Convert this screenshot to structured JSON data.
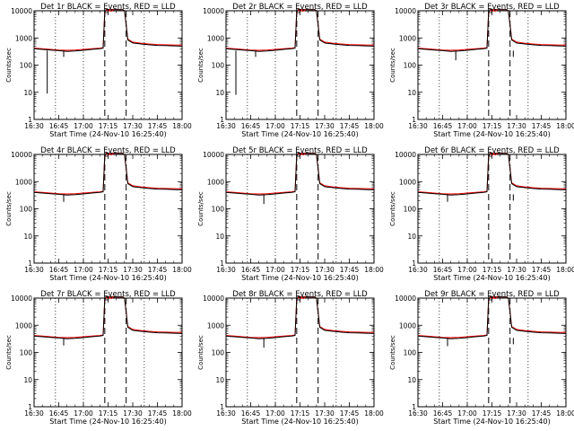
{
  "chart_data": {
    "type": "line",
    "layout": "grid",
    "grid_columns": 3,
    "y_scale": "log",
    "ylim": [
      1,
      10000
    ],
    "yticks": [
      1,
      10,
      100,
      1000,
      10000
    ],
    "xlim": [
      "16:30",
      "18:00"
    ],
    "xticks": [
      "16:30",
      "16:45",
      "17:00",
      "17:15",
      "17:30",
      "17:45",
      "18:00"
    ],
    "xlabel": "Start Time (24-Nov-10 16:25:40)",
    "ylabel": "Counts/sec",
    "colors": {
      "events": "#000000",
      "lld": "#ff0000"
    },
    "vlines": {
      "dashed": [
        "17:13",
        "17:26"
      ],
      "dotted": [
        "16:43",
        "17:00",
        "17:37"
      ]
    },
    "panels": [
      {
        "title": "Det 1r BLACK = Events, RED = LLD",
        "spikes": [
          {
            "x": "16:38",
            "y": 9
          },
          {
            "x": "16:48",
            "y": 200
          }
        ]
      },
      {
        "title": "Det 2r BLACK = Events, RED = LLD",
        "spikes": [
          {
            "x": "16:36",
            "y": 8
          },
          {
            "x": "16:48",
            "y": 200
          }
        ]
      },
      {
        "title": "Det 3r BLACK = Events, RED = LLD",
        "spikes": [
          {
            "x": "16:53",
            "y": 150
          },
          {
            "x": "17:28",
            "y": 200
          }
        ]
      },
      {
        "title": "Det 4r BLACK = Events, RED = LLD",
        "spikes": [
          {
            "x": "16:48",
            "y": 180
          }
        ]
      },
      {
        "title": "Det 5r BLACK = Events, RED = LLD",
        "spikes": [
          {
            "x": "16:53",
            "y": 150
          }
        ]
      },
      {
        "title": "Det 6r BLACK = Events, RED = LLD",
        "spikes": [
          {
            "x": "16:48",
            "y": 180
          },
          {
            "x": "17:28",
            "y": 200
          }
        ]
      },
      {
        "title": "Det 7r BLACK = Events, RED = LLD",
        "spikes": [
          {
            "x": "16:48",
            "y": 180
          }
        ]
      },
      {
        "title": "Det 8r BLACK = Events, RED = LLD",
        "spikes": [
          {
            "x": "16:53",
            "y": 150
          }
        ]
      },
      {
        "title": "Det 9r BLACK = Events, RED = LLD",
        "spikes": [
          {
            "x": "16:48",
            "y": 170
          },
          {
            "x": "17:28",
            "y": 200
          }
        ]
      }
    ],
    "series": [
      {
        "id": "lld",
        "x": [
          "16:30",
          "16:35",
          "16:40",
          "16:45",
          "16:50",
          "16:55",
          "17:00",
          "17:05",
          "17:10",
          "17:12",
          "17:13",
          "17:14",
          "17:16",
          "17:20",
          "17:24",
          "17:25",
          "17:26",
          "17:27",
          "17:30",
          "17:35",
          "17:40",
          "17:45",
          "17:50",
          "17:55",
          "18:00"
        ],
        "y": [
          420,
          400,
          380,
          360,
          350,
          360,
          380,
          400,
          420,
          440,
          9000,
          11000,
          11000,
          11000,
          11000,
          10000,
          3000,
          900,
          700,
          640,
          600,
          570,
          560,
          550,
          540
        ]
      },
      {
        "id": "events",
        "x": [
          "16:30",
          "16:35",
          "16:40",
          "16:45",
          "16:50",
          "16:55",
          "17:00",
          "17:05",
          "17:10",
          "17:12",
          "17:13",
          "17:14",
          "17:16",
          "17:20",
          "17:24",
          "17:25",
          "17:26",
          "17:27",
          "17:30",
          "17:35",
          "17:40",
          "17:45",
          "17:50",
          "17:55",
          "18:00"
        ],
        "y": [
          400,
          380,
          360,
          340,
          320,
          330,
          350,
          380,
          400,
          420,
          9000,
          11000,
          11000,
          11000,
          11000,
          10000,
          3000,
          850,
          650,
          600,
          560,
          530,
          520,
          510,
          500
        ]
      }
    ]
  }
}
